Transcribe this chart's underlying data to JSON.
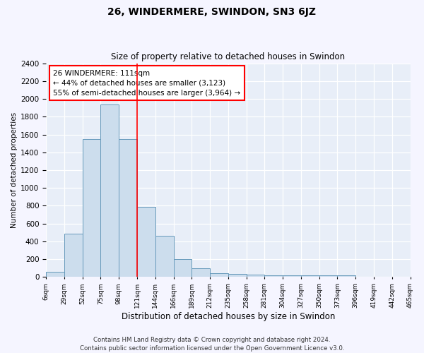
{
  "title": "26, WINDERMERE, SWINDON, SN3 6JZ",
  "subtitle": "Size of property relative to detached houses in Swindon",
  "xlabel": "Distribution of detached houses by size in Swindon",
  "ylabel": "Number of detached properties",
  "footer_line1": "Contains HM Land Registry data © Crown copyright and database right 2024.",
  "footer_line2": "Contains public sector information licensed under the Open Government Licence v3.0.",
  "bin_labels": [
    "6sqm",
    "29sqm",
    "52sqm",
    "75sqm",
    "98sqm",
    "121sqm",
    "144sqm",
    "166sqm",
    "189sqm",
    "212sqm",
    "235sqm",
    "258sqm",
    "281sqm",
    "304sqm",
    "327sqm",
    "350sqm",
    "373sqm",
    "396sqm",
    "419sqm",
    "442sqm",
    "465sqm"
  ],
  "bar_values": [
    60,
    490,
    1550,
    1940,
    1550,
    790,
    460,
    200,
    95,
    40,
    35,
    25,
    20,
    20,
    20,
    20,
    20,
    5,
    5,
    5
  ],
  "bar_color": "#ccdded",
  "bar_edge_color": "#6699bb",
  "background_color": "#e8eef8",
  "grid_color": "#ffffff",
  "annotation_line1": "26 WINDERMERE: 111sqm",
  "annotation_line2": "← 44% of detached houses are smaller (3,123)",
  "annotation_line3": "55% of semi-detached houses are larger (3,964) →",
  "property_line_x": 5.0,
  "ylim": [
    0,
    2400
  ],
  "yticks": [
    0,
    200,
    400,
    600,
    800,
    1000,
    1200,
    1400,
    1600,
    1800,
    2000,
    2200,
    2400
  ],
  "fig_width": 6.0,
  "fig_height": 5.0,
  "dpi": 100
}
